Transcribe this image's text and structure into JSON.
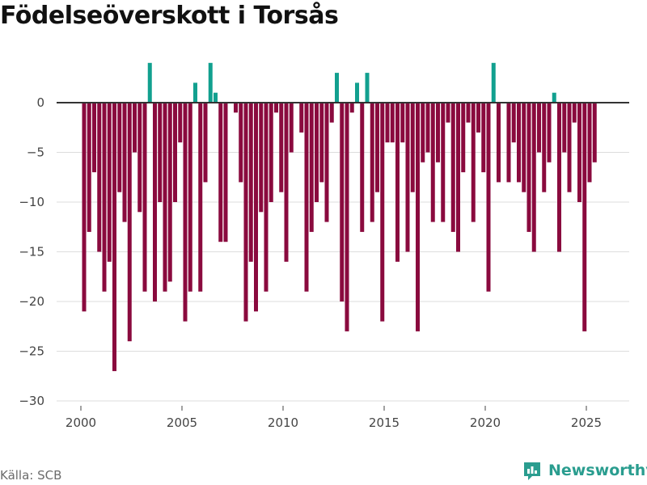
{
  "title": "Födelseöverskott i Torsås",
  "source": "Källa: SCB",
  "brand": {
    "name": "Newsworthy",
    "icon": "newsworthy-logo-icon"
  },
  "colors": {
    "negative": "#8a0a3e",
    "positive": "#12a08f",
    "zero_line": "#333333",
    "grid": "#dddddd",
    "brand": "#2a9d8f"
  },
  "chart_data": {
    "type": "bar",
    "title": "Födelseöverskott i Torsås",
    "frequency": "quarterly",
    "x_start": 2000,
    "xlim": [
      2000,
      2025.75
    ],
    "ylim": [
      -30,
      4
    ],
    "xticks": [
      2000,
      2005,
      2010,
      2015,
      2020,
      2025
    ],
    "yticks": [
      0,
      -5,
      -10,
      -15,
      -20,
      -25,
      -30
    ],
    "xlabel": "",
    "ylabel": "",
    "values": [
      -21,
      -13,
      -7,
      -15,
      -19,
      -16,
      -27,
      -9,
      -12,
      -24,
      -5,
      -11,
      -19,
      4,
      -20,
      -10,
      -19,
      -18,
      -10,
      -4,
      -22,
      -19,
      2,
      -19,
      -8,
      4,
      1,
      -14,
      -14,
      0,
      -1,
      -8,
      -22,
      -16,
      -21,
      -11,
      -19,
      -10,
      -1,
      -9,
      -16,
      -5,
      0,
      -3,
      -19,
      -13,
      -10,
      -8,
      -12,
      -2,
      3,
      -20,
      -23,
      -1,
      2,
      -13,
      3,
      -12,
      -9,
      -22,
      -4,
      -4,
      -16,
      -4,
      -15,
      -9,
      -23,
      -6,
      -5,
      -12,
      -6,
      -12,
      -2,
      -13,
      -15,
      -7,
      -2,
      -12,
      -3,
      -7,
      -19,
      4,
      -8,
      0,
      -8,
      -4,
      -8,
      -9,
      -13,
      -15,
      -5,
      -9,
      -6,
      1,
      -15,
      -5,
      -9,
      -2,
      -10,
      -23,
      -8,
      -6
    ]
  }
}
